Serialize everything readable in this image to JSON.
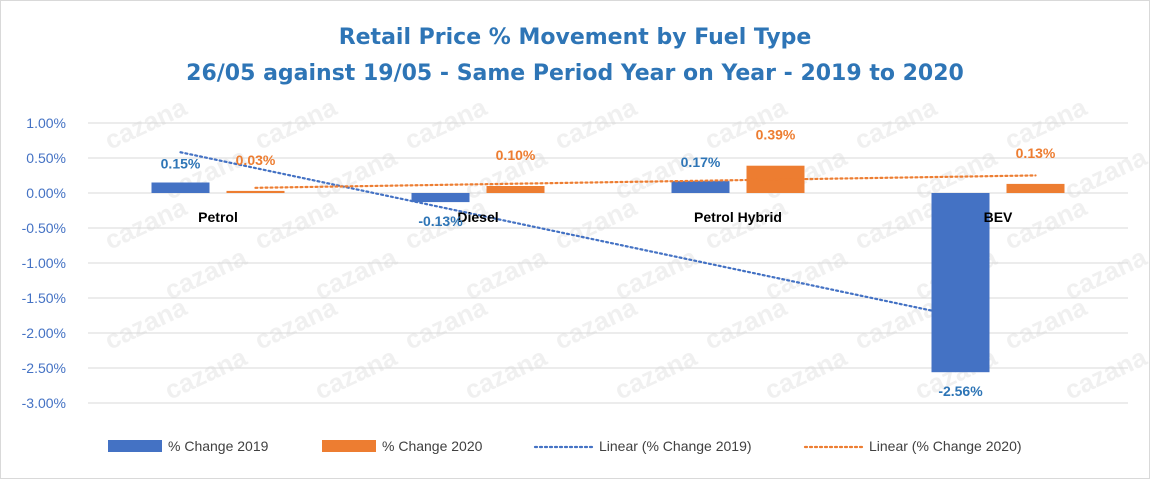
{
  "chart_data": {
    "type": "bar",
    "title": "Retail Price % Movement by Fuel Type",
    "subtitle": "26/05 against 19/05 - Same Period Year on Year - 2019 to 2020",
    "categories": [
      "Petrol",
      "Diesel",
      "Petrol Hybrid",
      "BEV"
    ],
    "series": [
      {
        "name": "% Change 2019",
        "values": [
          0.15,
          -0.13,
          0.17,
          -2.56
        ],
        "labels": [
          "0.15%",
          "-0.13%",
          "0.17%",
          "-2.56%"
        ],
        "color": "#4472c4"
      },
      {
        "name": "% Change 2020",
        "values": [
          0.03,
          0.1,
          0.39,
          0.13
        ],
        "labels": [
          "0.03%",
          "0.10%",
          "0.39%",
          "0.13%"
        ],
        "color": "#ed7d31"
      }
    ],
    "trendlines": [
      {
        "name": "Linear (% Change 2019)",
        "series": 0,
        "type": "linear",
        "style": "dotted",
        "color": "#4472c4"
      },
      {
        "name": "Linear (% Change 2020)",
        "series": 1,
        "type": "linear",
        "style": "dotted",
        "color": "#ed7d31"
      }
    ],
    "yticks": [
      "1.00%",
      "0.50%",
      "0.00%",
      "-0.50%",
      "-1.00%",
      "-1.50%",
      "-2.00%",
      "-2.50%",
      "-3.00%"
    ],
    "ylim": [
      -3.0,
      1.0
    ],
    "ystep": 0.5,
    "grid": true,
    "legend": "bottom",
    "watermark": "cazana",
    "xlabel": "",
    "ylabel": ""
  }
}
